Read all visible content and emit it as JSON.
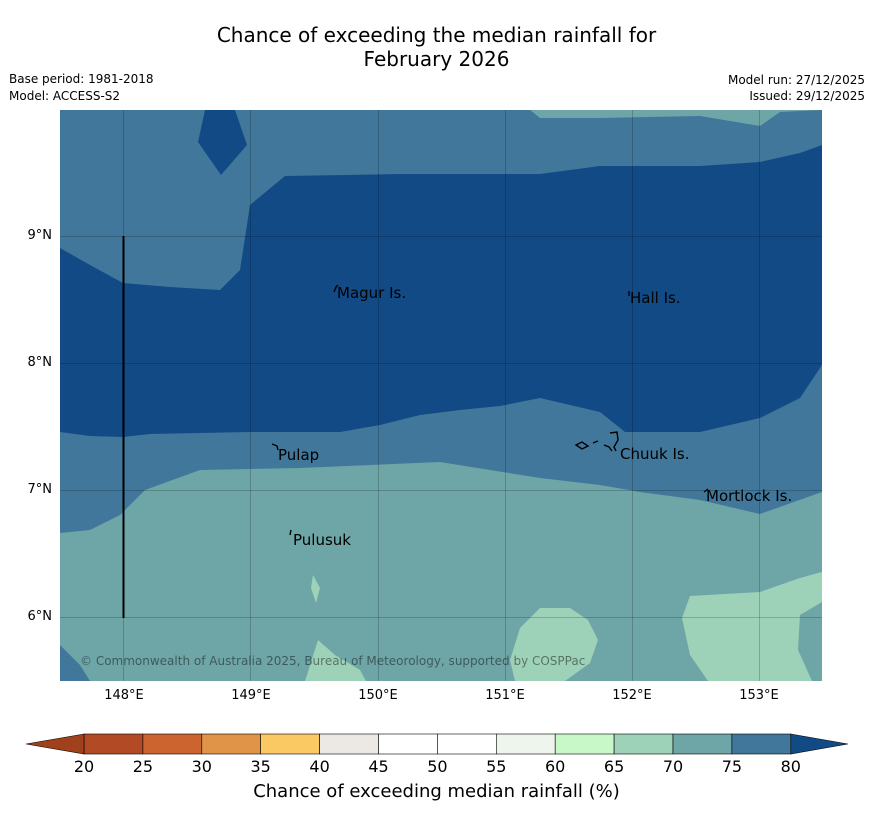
{
  "title_line1": "Chance of exceeding the median rainfall for",
  "title_line2": "February 2026",
  "meta": {
    "base_period": "Base period: 1981-2018",
    "model": "Model: ACCESS-S2",
    "model_run": "Model run: 27/12/2025",
    "issued": "Issued: 29/12/2025"
  },
  "axes": {
    "x_ticks": [
      "148°E",
      "149°E",
      "150°E",
      "151°E",
      "152°E",
      "153°E"
    ],
    "y_ticks": [
      "9°N",
      "8°N",
      "7°N",
      "6°N"
    ]
  },
  "places": {
    "magur": "Magur Is.",
    "hall": "Hall Is.",
    "pulap": "Pulap",
    "chuuk": "Chuuk Is.",
    "mortlock": "Mortlock Is.",
    "pulusuk": "Pulusuk"
  },
  "copyright": "© Commonwealth of Australia 2025, Bureau of Meteorology, supported by COSPPac",
  "colorbar": {
    "labels": [
      "20",
      "25",
      "30",
      "35",
      "40",
      "45",
      "50",
      "55",
      "60",
      "65",
      "70",
      "75",
      "80"
    ],
    "title": "Chance of exceeding median rainfall (%)",
    "colors": [
      "#a0401c",
      "#b24a25",
      "#cc6430",
      "#e09448",
      "#fac964",
      "#ece9e4",
      "#ffffff",
      "#ffffff",
      "#eef5ec",
      "#c8f8c8",
      "#9dd2b8",
      "#6ea5a7",
      "#41779a",
      "#124a86"
    ]
  },
  "colors": {
    "c60_65": "#c8f8c8",
    "c65_70": "#9dd2b8",
    "c70_75": "#6ea5a7",
    "c75_80": "#41779a",
    "c80_plus": "#124a86"
  }
}
